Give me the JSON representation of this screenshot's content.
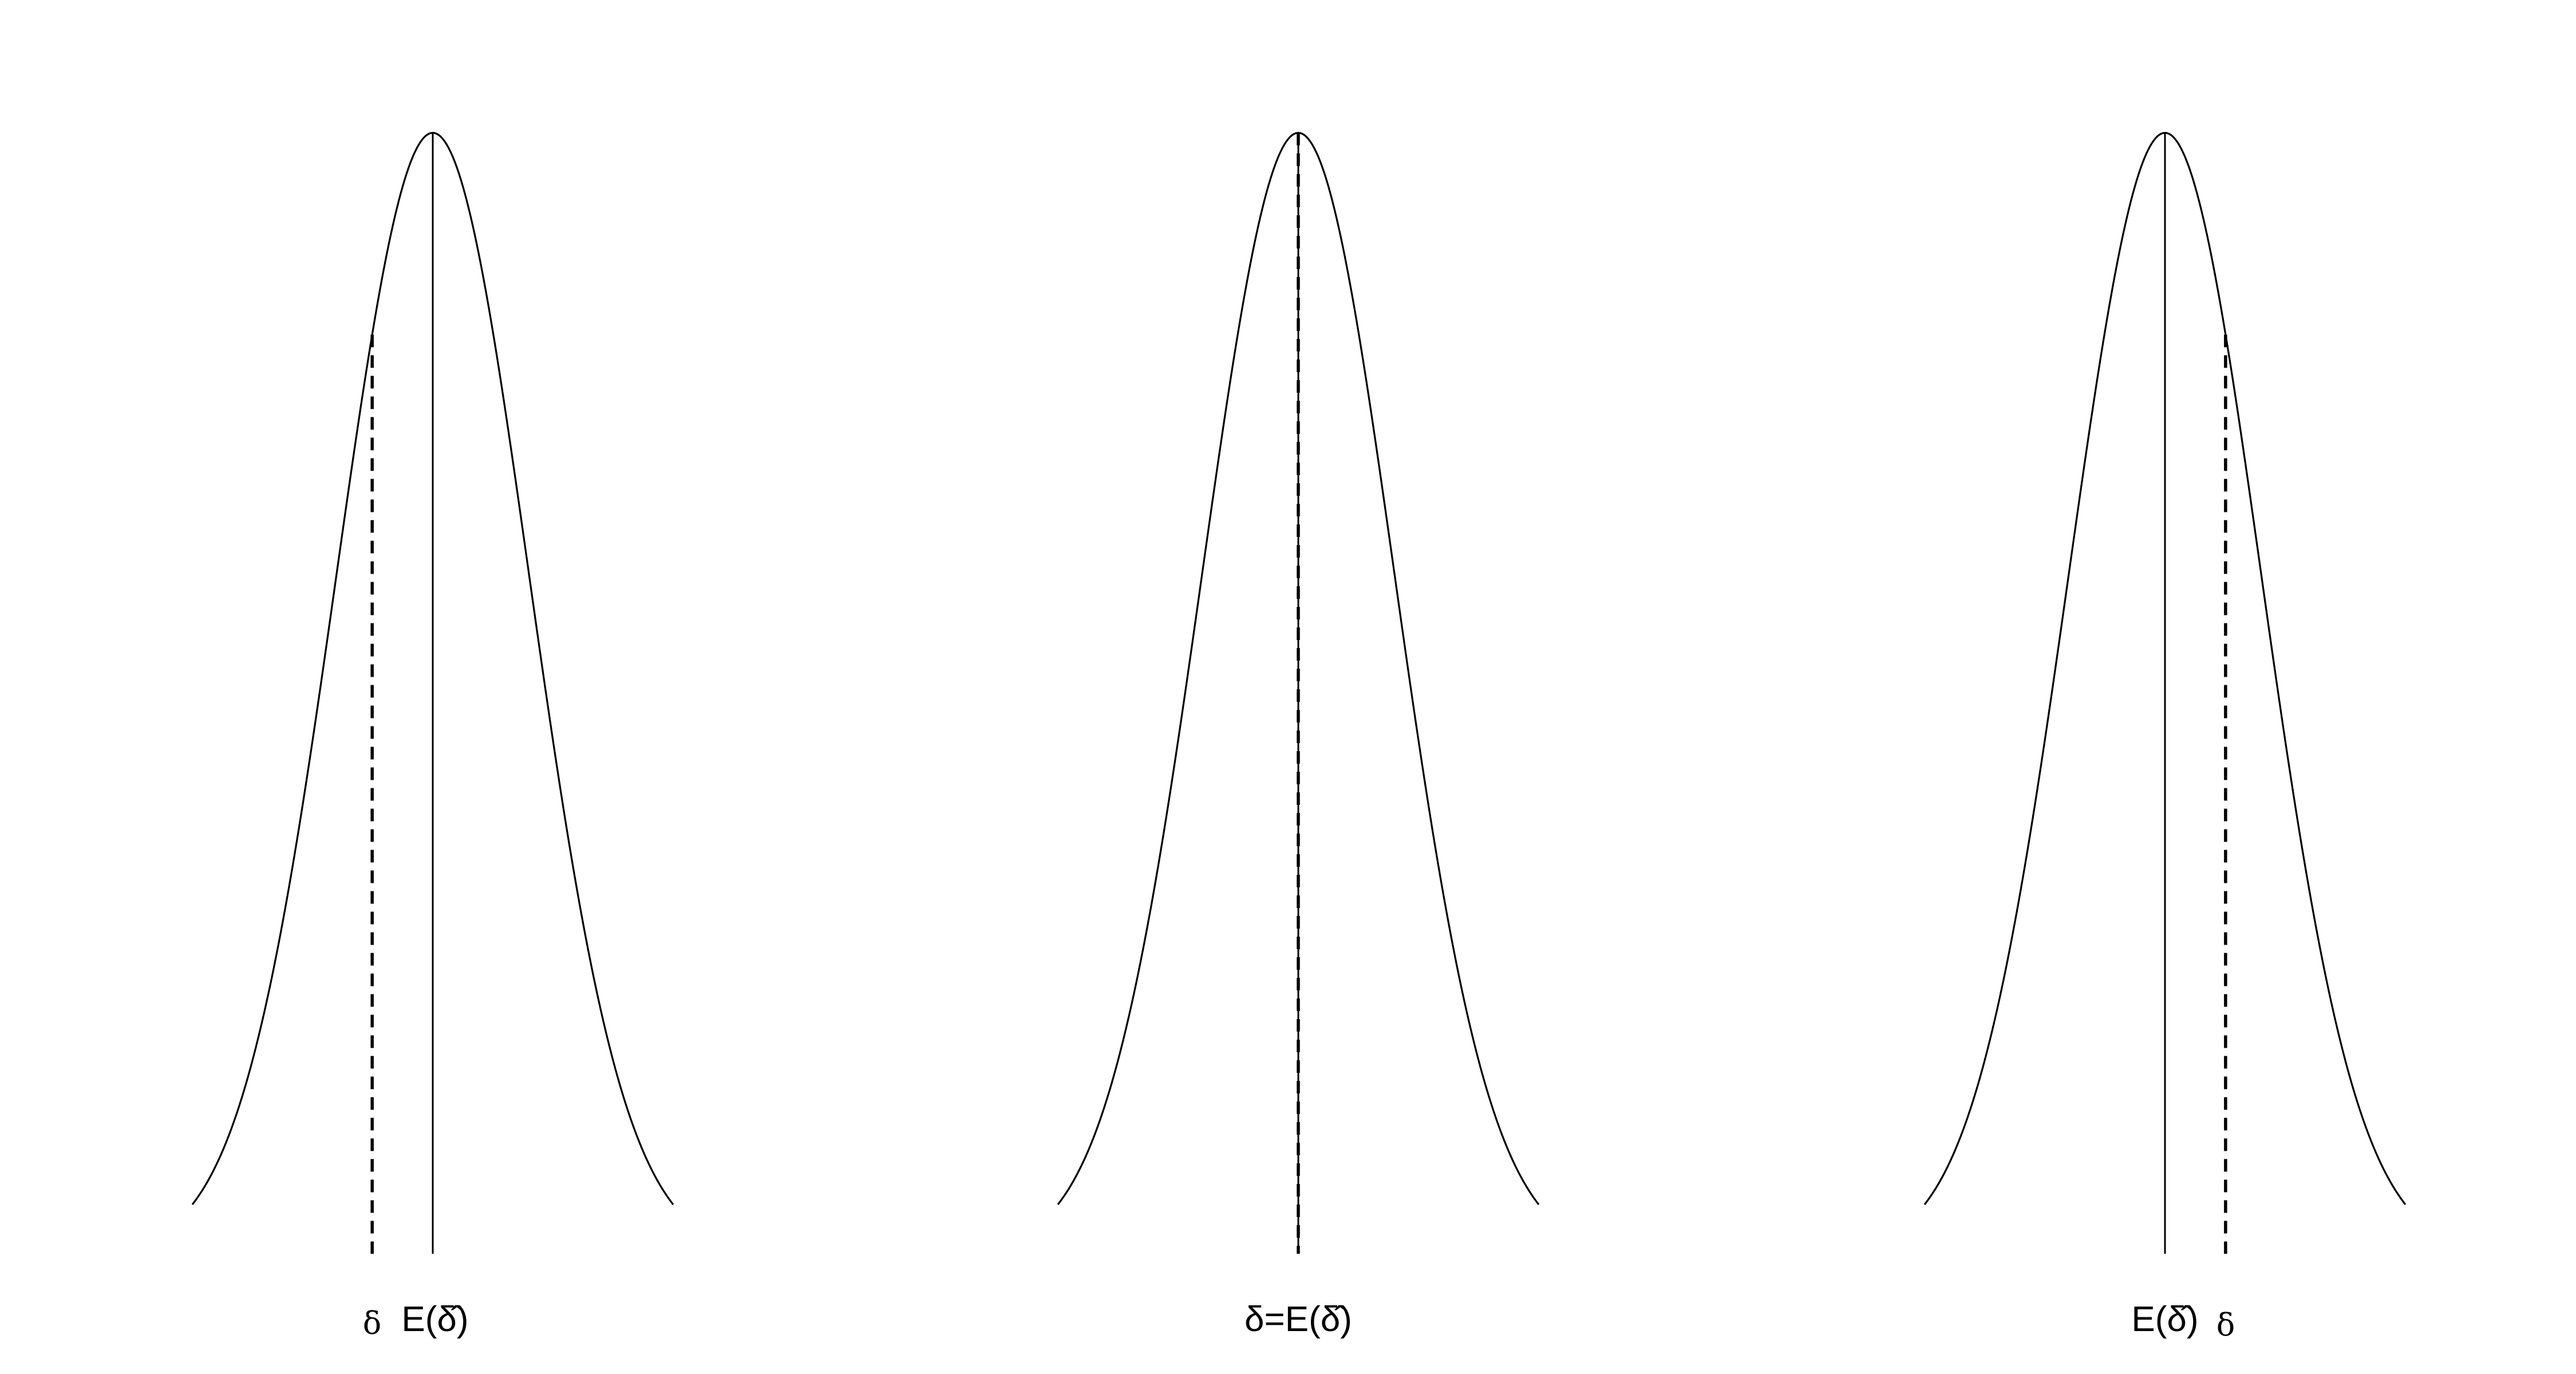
{
  "panels": [
    {
      "id": "left",
      "label_expectation": "E(δ̂)",
      "label_delta": "δ",
      "label_combined": "",
      "delta_offset_sd": -0.63
    },
    {
      "id": "middle",
      "label_expectation": "",
      "label_delta": "",
      "label_combined": "δ=E(δ̂)",
      "delta_offset_sd": 0
    },
    {
      "id": "right",
      "label_expectation": "E(δ̂)",
      "label_delta": "δ",
      "label_combined": "",
      "delta_offset_sd": 0.63
    }
  ]
}
